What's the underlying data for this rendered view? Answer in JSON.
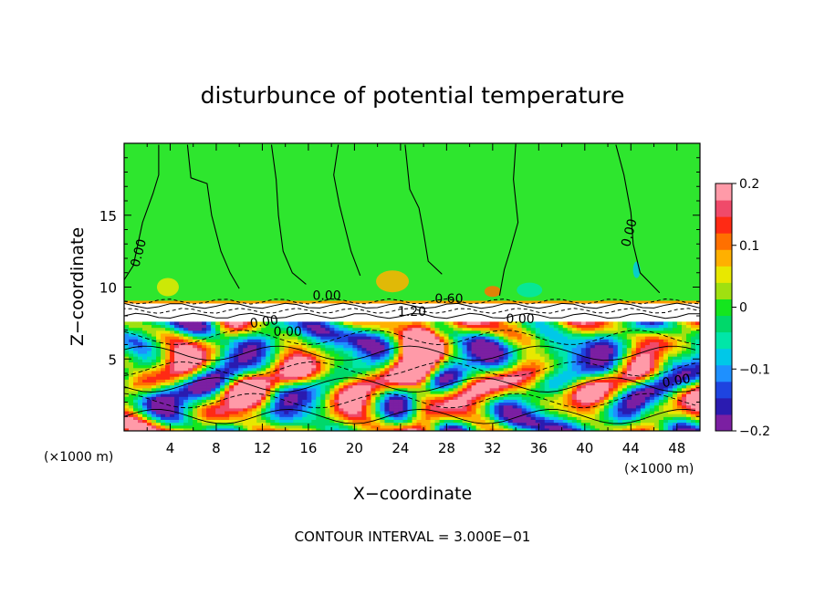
{
  "chart_data": {
    "type": "heatmap",
    "title": "disturbunce of potential temperature",
    "xlabel": "X−coordinate",
    "ylabel": "Z−coordinate",
    "x_unit_left": "(×1000 m)",
    "x_unit_right": "(×1000 m)",
    "xlim": [
      0,
      50
    ],
    "ylim": [
      0,
      20
    ],
    "xticks": [
      4,
      8,
      12,
      16,
      20,
      24,
      28,
      32,
      36,
      40,
      44,
      48
    ],
    "xtick_labels": [
      "4",
      "8",
      "12",
      "16",
      "20",
      "24",
      "28",
      "32",
      "36",
      "40",
      "44",
      "48"
    ],
    "yticks": [
      5,
      10,
      15
    ],
    "ytick_labels": [
      "5",
      "10",
      "15"
    ],
    "colorbar": {
      "min": -0.2,
      "max": 0.2,
      "ticks": [
        0.2,
        0.1,
        0,
        -0.1,
        -0.2
      ],
      "tick_labels": [
        "0.2",
        "0.1",
        "0",
        "−0.1",
        "−0.2"
      ],
      "colors": [
        "#7b1fa2",
        "#2a1bb0",
        "#1e44e0",
        "#1e90ff",
        "#00c8e8",
        "#00e6a8",
        "#00d86a",
        "#14e61e",
        "#a0e010",
        "#e8e800",
        "#ffb000",
        "#ff7000",
        "#ff2a14",
        "#f04a6a",
        "#ff9aa8"
      ]
    },
    "upper_layer_color": "#2ee62e",
    "contour_labels": [
      {
        "text": "0.00",
        "x": 1.6,
        "z": 12.3,
        "rot": -75
      },
      {
        "text": "0.00",
        "x": 17.6,
        "z": 9.1,
        "rot": 0
      },
      {
        "text": "0.60",
        "x": 28.2,
        "z": 8.9,
        "rot": 0
      },
      {
        "text": "1.20",
        "x": 25.0,
        "z": 8.0,
        "rot": 0
      },
      {
        "text": "0.00",
        "x": 34.4,
        "z": 7.5,
        "rot": 0
      },
      {
        "text": "0.00",
        "x": 12.2,
        "z": 7.3,
        "rot": -8
      },
      {
        "text": "0.00",
        "x": 14.2,
        "z": 6.6,
        "rot": 0
      },
      {
        "text": "0.00",
        "x": 44.2,
        "z": 13.7,
        "rot": -75
      },
      {
        "text": "0.00",
        "x": 48.0,
        "z": 3.2,
        "rot": -10
      }
    ],
    "footer": "CONTOUR INTERVAL = 3.000E−01"
  }
}
